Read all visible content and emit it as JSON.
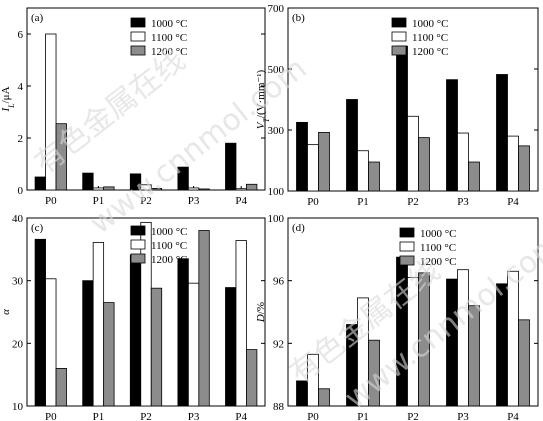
{
  "colors": {
    "1000 °C": "#000000",
    "1100 °C": "#ffffff",
    "1200 °C": "#8c8c8c"
  },
  "watermark": {
    "cn": "有色金属在线",
    "url": "www.cnnmol.com"
  },
  "chart_data": [
    {
      "type": "bar",
      "panel": "(a)",
      "ylabel": "I",
      "ylabel_sub": "L",
      "ylabel_unit": "/μA",
      "categories": [
        "P0",
        "P1",
        "P2",
        "P3",
        "P4"
      ],
      "ylim": [
        0,
        7
      ],
      "yticks": [
        0,
        2,
        4,
        6
      ],
      "legend": "top-right",
      "series": [
        {
          "name": "1000 °C",
          "values": [
            0.5,
            0.65,
            0.62,
            0.88,
            1.8
          ]
        },
        {
          "name": "1100 °C",
          "values": [
            6.0,
            0.08,
            0.2,
            0.08,
            0.05
          ]
        },
        {
          "name": "1200 °C",
          "values": [
            2.55,
            0.12,
            0.06,
            0.04,
            0.22
          ]
        }
      ]
    },
    {
      "type": "bar",
      "panel": "(b)",
      "ylabel": "V",
      "ylabel_sub": "T",
      "ylabel_unit": "/(V·mm⁻¹)",
      "categories": [
        "P0",
        "P1",
        "P2",
        "P3",
        "P4"
      ],
      "ylim": [
        100,
        700
      ],
      "yticks": [
        100,
        300,
        500,
        700
      ],
      "legend": "top-right",
      "series": [
        {
          "name": "1000 °C",
          "values": [
            325,
            400,
            575,
            465,
            482
          ]
        },
        {
          "name": "1100 °C",
          "values": [
            252,
            232,
            345,
            290,
            280
          ]
        },
        {
          "name": "1200 °C",
          "values": [
            292,
            195,
            275,
            195,
            248
          ]
        }
      ]
    },
    {
      "type": "bar",
      "panel": "(c)",
      "ylabel": "α",
      "categories": [
        "P0",
        "P1",
        "P2",
        "P3",
        "P4"
      ],
      "ylim": [
        10,
        40
      ],
      "yticks": [
        10,
        20,
        30,
        40
      ],
      "legend": "top-right",
      "series": [
        {
          "name": "1000 °C",
          "values": [
            36.6,
            30.0,
            34.1,
            33.5,
            28.9
          ]
        },
        {
          "name": "1100 °C",
          "values": [
            30.3,
            36.1,
            39.3,
            29.6,
            36.4
          ]
        },
        {
          "name": "1200 °C",
          "values": [
            16.0,
            26.5,
            28.8,
            38.0,
            19.0
          ]
        }
      ]
    },
    {
      "type": "bar",
      "panel": "(d)",
      "ylabel": "D",
      "ylabel_unit": "/%",
      "categories": [
        "P0",
        "P1",
        "P2",
        "P3",
        "P4"
      ],
      "ylim": [
        88,
        100
      ],
      "yticks": [
        88,
        92,
        96,
        100
      ],
      "legend": "top-right",
      "series": [
        {
          "name": "1000 °C",
          "values": [
            89.6,
            93.2,
            97.5,
            96.1,
            95.8
          ]
        },
        {
          "name": "1100 °C",
          "values": [
            91.3,
            94.9,
            96.2,
            96.7,
            96.6
          ]
        },
        {
          "name": "1200 °C",
          "values": [
            89.1,
            92.2,
            96.5,
            94.4,
            93.5
          ]
        }
      ]
    }
  ]
}
